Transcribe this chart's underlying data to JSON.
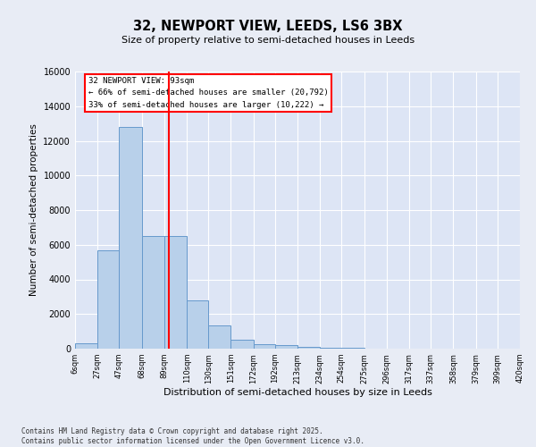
{
  "title_line1": "32, NEWPORT VIEW, LEEDS, LS6 3BX",
  "title_line2": "Size of property relative to semi-detached houses in Leeds",
  "xlabel": "Distribution of semi-detached houses by size in Leeds",
  "ylabel": "Number of semi-detached properties",
  "footer_line1": "Contains HM Land Registry data © Crown copyright and database right 2025.",
  "footer_line2": "Contains public sector information licensed under the Open Government Licence v3.0.",
  "annotation_line1": "32 NEWPORT VIEW: 93sqm",
  "annotation_line2": "← 66% of semi-detached houses are smaller (20,792)",
  "annotation_line3": "33% of semi-detached houses are larger (10,222) →",
  "property_size": 93,
  "bin_edges": [
    6,
    27,
    47,
    68,
    89,
    110,
    130,
    151,
    172,
    192,
    213,
    234,
    254,
    275,
    296,
    317,
    337,
    358,
    379,
    399,
    420
  ],
  "bin_labels": [
    "6sqm",
    "27sqm",
    "47sqm",
    "68sqm",
    "89sqm",
    "110sqm",
    "130sqm",
    "151sqm",
    "172sqm",
    "192sqm",
    "213sqm",
    "234sqm",
    "254sqm",
    "275sqm",
    "296sqm",
    "317sqm",
    "337sqm",
    "358sqm",
    "379sqm",
    "399sqm",
    "420sqm"
  ],
  "bar_values": [
    300,
    5700,
    12800,
    6500,
    6500,
    2800,
    1350,
    500,
    250,
    200,
    100,
    50,
    30,
    10,
    5,
    2,
    1,
    0,
    0,
    0
  ],
  "bar_color": "#b8d0ea",
  "bar_edgecolor": "#6699cc",
  "vline_color": "red",
  "vline_x": 93,
  "ylim": [
    0,
    16000
  ],
  "yticks": [
    0,
    2000,
    4000,
    6000,
    8000,
    10000,
    12000,
    14000,
    16000
  ],
  "fig_facecolor": "#e8ecf5",
  "plot_facecolor": "#dde5f5",
  "grid_color": "#ffffff",
  "annotation_box_color": "white",
  "annotation_box_edgecolor": "red",
  "fig_width": 6.0,
  "fig_height": 5.0,
  "dpi": 100
}
